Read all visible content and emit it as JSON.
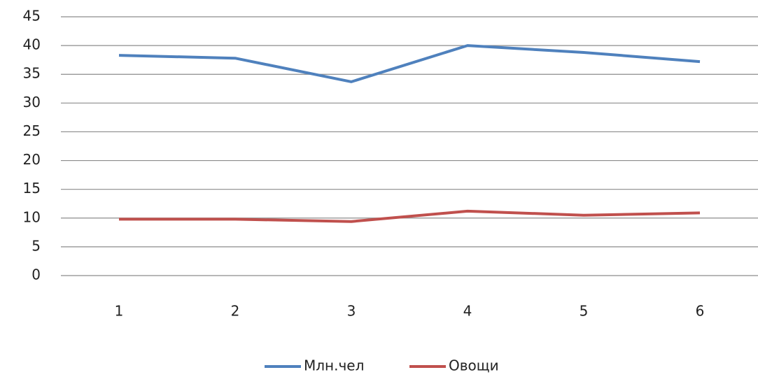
{
  "chart_data": {
    "type": "line",
    "categories": [
      1,
      2,
      3,
      4,
      5,
      6
    ],
    "series": [
      {
        "name": "Млн.чел",
        "color": "#4f81bd",
        "values": [
          38.3,
          37.8,
          33.7,
          40.0,
          38.8,
          37.2
        ]
      },
      {
        "name": "Овощи",
        "color": "#c0504d",
        "values": [
          9.8,
          9.8,
          9.4,
          11.2,
          10.5,
          10.9
        ]
      }
    ],
    "ylim": [
      0,
      45
    ],
    "yticks": [
      0,
      5,
      10,
      15,
      20,
      25,
      30,
      35,
      40,
      45
    ],
    "grid": true,
    "legend": "bottom"
  }
}
